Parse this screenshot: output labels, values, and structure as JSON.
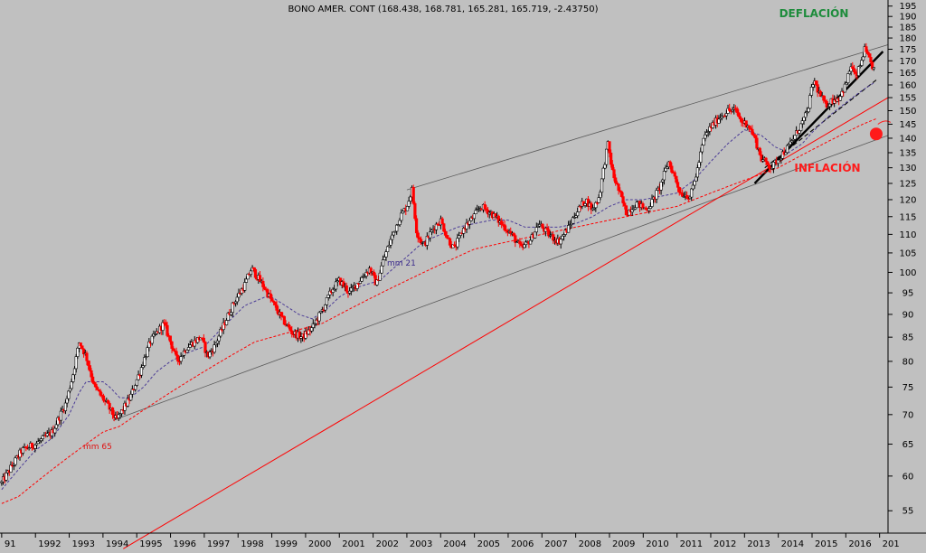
{
  "chart_data": {
    "type": "candlestick",
    "title": "BONO AMER. CONT (168.438, 168.781, 165.281, 165.719, -2.43750)",
    "annotations": {
      "deflation": "DEFLACIÓN",
      "inflation": "INFLACIÓN",
      "mm21": "mm 21",
      "mm65": "mm 65"
    },
    "x_ticks": [
      "91",
      "1992",
      "1993",
      "1994",
      "1995",
      "1996",
      "1997",
      "1998",
      "1999",
      "2000",
      "2001",
      "2002",
      "2003",
      "2004",
      "2005",
      "2006",
      "2007",
      "2008",
      "2009",
      "2010",
      "2011",
      "2012",
      "2013",
      "2014",
      "2015",
      "2016",
      "201"
    ],
    "y_ticks": [
      55,
      60,
      65,
      70,
      75,
      80,
      85,
      90,
      95,
      100,
      105,
      110,
      115,
      120,
      125,
      130,
      135,
      140,
      145,
      150,
      155,
      160,
      165,
      170,
      175,
      180,
      185,
      190,
      195
    ],
    "x_range": [
      1990.95,
      2017.25
    ],
    "y_range": [
      52,
      198
    ],
    "y_scale": "log",
    "grid": false,
    "colors": {
      "background": "#c0c0c0",
      "up": "#000000",
      "down": "#ff0000",
      "mm21": "#4b3c96",
      "mm65": "#ff0000",
      "deflation": "#1e8c3c",
      "inflation": "#ff1a1a",
      "channel": "#606060"
    },
    "anchors": [
      [
        1991.0,
        59
      ],
      [
        1991.6,
        64
      ],
      [
        1992.0,
        65
      ],
      [
        1992.5,
        67
      ],
      [
        1992.9,
        72
      ],
      [
        1993.1,
        77
      ],
      [
        1993.3,
        84
      ],
      [
        1993.5,
        81
      ],
      [
        1993.75,
        75
      ],
      [
        1994.1,
        72
      ],
      [
        1994.4,
        69
      ],
      [
        1994.8,
        73
      ],
      [
        1995.1,
        78
      ],
      [
        1995.4,
        84
      ],
      [
        1995.8,
        88
      ],
      [
        1996.0,
        84
      ],
      [
        1996.2,
        80
      ],
      [
        1996.5,
        83
      ],
      [
        1996.9,
        85
      ],
      [
        1997.1,
        81
      ],
      [
        1997.3,
        83
      ],
      [
        1997.6,
        88
      ],
      [
        1997.9,
        93
      ],
      [
        1998.2,
        97
      ],
      [
        1998.4,
        101
      ],
      [
        1998.8,
        96
      ],
      [
        1999.0,
        93
      ],
      [
        1999.3,
        89
      ],
      [
        1999.6,
        86
      ],
      [
        1999.9,
        85
      ],
      [
        2000.2,
        87
      ],
      [
        2000.5,
        91
      ],
      [
        2000.8,
        96
      ],
      [
        2001.0,
        98
      ],
      [
        2001.3,
        95
      ],
      [
        2001.6,
        98
      ],
      [
        2001.9,
        101
      ],
      [
        2002.1,
        97
      ],
      [
        2002.3,
        103
      ],
      [
        2002.5,
        108
      ],
      [
        2002.8,
        115
      ],
      [
        2003.0,
        118
      ],
      [
        2003.15,
        123
      ],
      [
        2003.3,
        110
      ],
      [
        2003.5,
        107
      ],
      [
        2003.8,
        112
      ],
      [
        2004.0,
        114
      ],
      [
        2004.2,
        109
      ],
      [
        2004.4,
        106
      ],
      [
        2004.7,
        112
      ],
      [
        2004.9,
        114
      ],
      [
        2005.2,
        118
      ],
      [
        2005.5,
        116
      ],
      [
        2005.9,
        112
      ],
      [
        2006.1,
        110
      ],
      [
        2006.4,
        106
      ],
      [
        2006.7,
        109
      ],
      [
        2006.9,
        113
      ],
      [
        2007.2,
        110
      ],
      [
        2007.5,
        108
      ],
      [
        2007.8,
        112
      ],
      [
        2008.0,
        116
      ],
      [
        2008.3,
        120
      ],
      [
        2008.5,
        117
      ],
      [
        2008.7,
        121
      ],
      [
        2008.95,
        138
      ],
      [
        2009.1,
        128
      ],
      [
        2009.3,
        122
      ],
      [
        2009.5,
        116
      ],
      [
        2009.8,
        119
      ],
      [
        2010.1,
        117
      ],
      [
        2010.3,
        120
      ],
      [
        2010.5,
        124
      ],
      [
        2010.75,
        132
      ],
      [
        2010.9,
        128
      ],
      [
        2011.1,
        122
      ],
      [
        2011.4,
        121
      ],
      [
        2011.6,
        129
      ],
      [
        2011.8,
        140
      ],
      [
        2012.0,
        144
      ],
      [
        2012.3,
        148
      ],
      [
        2012.5,
        150
      ],
      [
        2012.75,
        150
      ],
      [
        2012.9,
        146
      ],
      [
        2013.1,
        145
      ],
      [
        2013.3,
        140
      ],
      [
        2013.5,
        133
      ],
      [
        2013.8,
        130
      ],
      [
        2014.0,
        133
      ],
      [
        2014.3,
        137
      ],
      [
        2014.6,
        143
      ],
      [
        2014.85,
        149
      ],
      [
        2015.05,
        162
      ],
      [
        2015.2,
        157
      ],
      [
        2015.4,
        152
      ],
      [
        2015.6,
        154
      ],
      [
        2015.8,
        155
      ],
      [
        2016.0,
        160
      ],
      [
        2016.15,
        168
      ],
      [
        2016.3,
        163
      ],
      [
        2016.45,
        169
      ],
      [
        2016.55,
        175
      ],
      [
        2016.7,
        170
      ],
      [
        2016.85,
        166
      ]
    ],
    "mm21_anchors": [
      [
        1991.0,
        58
      ],
      [
        1991.5,
        61
      ],
      [
        1992.0,
        64
      ],
      [
        1992.5,
        66
      ],
      [
        1993.0,
        70
      ],
      [
        1993.3,
        74
      ],
      [
        1993.5,
        76
      ],
      [
        1994.0,
        76
      ],
      [
        1994.2,
        75
      ],
      [
        1994.5,
        73
      ],
      [
        1994.8,
        73
      ],
      [
        1995.2,
        75
      ],
      [
        1995.6,
        78
      ],
      [
        1996.0,
        80
      ],
      [
        1996.3,
        81
      ],
      [
        1996.6,
        82
      ],
      [
        1997.0,
        83
      ],
      [
        1997.4,
        86
      ],
      [
        1997.8,
        89
      ],
      [
        1998.2,
        92
      ],
      [
        1998.5,
        93
      ],
      [
        1998.8,
        94
      ],
      [
        1999.0,
        94
      ],
      [
        1999.4,
        92
      ],
      [
        1999.8,
        90
      ],
      [
        2000.2,
        89
      ],
      [
        2000.6,
        91
      ],
      [
        2001.0,
        94
      ],
      [
        2001.4,
        96
      ],
      [
        2001.8,
        97
      ],
      [
        2002.2,
        98
      ],
      [
        2002.6,
        101
      ],
      [
        2003.0,
        104
      ],
      [
        2003.5,
        108
      ],
      [
        2004.0,
        110
      ],
      [
        2004.5,
        112
      ],
      [
        2005.0,
        113
      ],
      [
        2005.5,
        114
      ],
      [
        2006.0,
        114
      ],
      [
        2006.5,
        112
      ],
      [
        2007.0,
        112
      ],
      [
        2007.5,
        112
      ],
      [
        2008.0,
        113
      ],
      [
        2008.5,
        115
      ],
      [
        2009.0,
        118
      ],
      [
        2009.5,
        120
      ],
      [
        2010.0,
        120
      ],
      [
        2010.5,
        121
      ],
      [
        2011.0,
        122
      ],
      [
        2011.5,
        126
      ],
      [
        2012.0,
        132
      ],
      [
        2012.5,
        138
      ],
      [
        2013.0,
        143
      ],
      [
        2013.5,
        141
      ],
      [
        2013.9,
        137
      ],
      [
        2014.3,
        135
      ],
      [
        2014.7,
        138
      ],
      [
        2015.0,
        142
      ],
      [
        2015.5,
        148
      ],
      [
        2016.0,
        153
      ],
      [
        2016.5,
        158
      ],
      [
        2016.85,
        161
      ]
    ],
    "mm65_anchors": [
      [
        1991.0,
        56
      ],
      [
        1991.5,
        57
      ],
      [
        1992.0,
        59
      ],
      [
        1992.5,
        61
      ],
      [
        1993.0,
        63
      ],
      [
        1993.5,
        65
      ],
      [
        1994.0,
        67
      ],
      [
        1994.5,
        68
      ],
      [
        1995.0,
        70
      ],
      [
        1995.5,
        72
      ],
      [
        1996.0,
        74
      ],
      [
        1996.5,
        76
      ],
      [
        1997.0,
        78
      ],
      [
        1997.5,
        80
      ],
      [
        1998.0,
        82
      ],
      [
        1998.5,
        84
      ],
      [
        1999.0,
        85
      ],
      [
        1999.5,
        86
      ],
      [
        2000.0,
        87
      ],
      [
        2000.5,
        88
      ],
      [
        2001.0,
        90
      ],
      [
        2001.5,
        92
      ],
      [
        2002.0,
        94
      ],
      [
        2002.5,
        96
      ],
      [
        2003.0,
        98
      ],
      [
        2003.5,
        100
      ],
      [
        2004.0,
        102
      ],
      [
        2004.5,
        104
      ],
      [
        2005.0,
        106
      ],
      [
        2005.5,
        107
      ],
      [
        2006.0,
        108
      ],
      [
        2006.5,
        109
      ],
      [
        2007.0,
        110
      ],
      [
        2007.5,
        111
      ],
      [
        2008.0,
        112
      ],
      [
        2008.5,
        113
      ],
      [
        2009.0,
        114
      ],
      [
        2009.5,
        115
      ],
      [
        2010.0,
        116
      ],
      [
        2010.5,
        117
      ],
      [
        2011.0,
        118
      ],
      [
        2011.5,
        120
      ],
      [
        2012.0,
        122
      ],
      [
        2012.5,
        124
      ],
      [
        2013.0,
        126
      ],
      [
        2013.5,
        128
      ],
      [
        2014.0,
        130
      ],
      [
        2014.5,
        133
      ],
      [
        2015.0,
        136
      ],
      [
        2015.5,
        139
      ],
      [
        2016.0,
        142
      ],
      [
        2016.5,
        145
      ],
      [
        2016.9,
        147
      ]
    ],
    "trendlines": [
      {
        "name": "channel-upper",
        "style": "thin-gray",
        "points": [
          [
            2003.0,
            123
          ],
          [
            2017.25,
            177
          ]
        ]
      },
      {
        "name": "channel-lower",
        "style": "thin-gray",
        "points": [
          [
            1994.3,
            69
          ],
          [
            2017.25,
            141
          ]
        ]
      },
      {
        "name": "inflation-support",
        "style": "red",
        "points": [
          [
            1994.6,
            50
          ],
          [
            2017.25,
            155
          ]
        ]
      },
      {
        "name": "short-support-solid",
        "style": "thick-black",
        "points": [
          [
            2013.3,
            125
          ],
          [
            2017.1,
            174
          ]
        ]
      },
      {
        "name": "short-support-dashed",
        "style": "dashed-black",
        "points": [
          [
            2013.6,
            130
          ],
          [
            2016.9,
            162
          ]
        ]
      }
    ]
  }
}
